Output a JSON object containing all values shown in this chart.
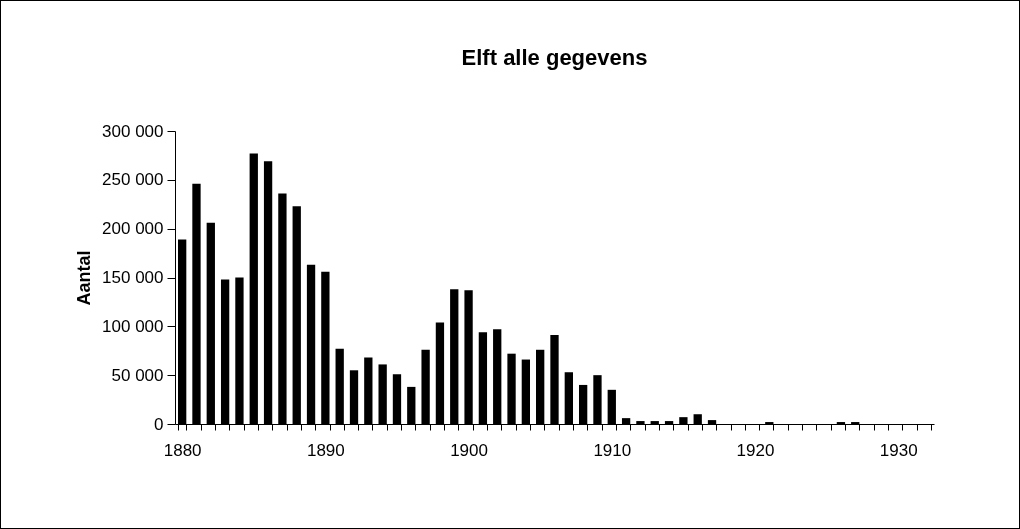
{
  "chart_data": {
    "type": "bar",
    "title": "Elft alle gegevens",
    "ylabel": "Aantal",
    "color": "#000000",
    "categories": [
      "1880",
      null,
      null,
      null,
      null,
      null,
      null,
      null,
      null,
      null,
      "1890",
      null,
      null,
      null,
      null,
      null,
      null,
      null,
      null,
      null,
      "1900",
      null,
      null,
      null,
      null,
      null,
      null,
      null,
      null,
      null,
      "1910",
      null,
      null,
      null,
      null,
      null,
      null,
      null,
      null,
      null,
      "1920",
      null,
      null,
      null,
      null,
      null,
      null,
      null,
      null,
      null,
      "1930",
      null,
      null
    ],
    "values": [
      189000,
      246000,
      206000,
      148000,
      150000,
      277000,
      269000,
      236000,
      223000,
      163000,
      156000,
      77000,
      55000,
      68000,
      61000,
      51000,
      38000,
      76000,
      104000,
      138000,
      137000,
      94000,
      97000,
      72000,
      66000,
      76000,
      91000,
      53000,
      40000,
      50000,
      35000,
      6000,
      3000,
      3000,
      3000,
      7000,
      10000,
      4000,
      0,
      0,
      0,
      2000,
      0,
      0,
      0,
      0,
      2000,
      2000,
      0,
      0,
      0,
      0,
      0
    ],
    "ylim": [
      0,
      300000
    ],
    "yticks": [
      0,
      {
        "value": 50000,
        "label": "50 000"
      },
      {
        "value": 100000,
        "label": "100 000"
      },
      {
        "value": 150000,
        "label": "150 000"
      },
      {
        "value": 200000,
        "label": "200 000"
      },
      {
        "value": 250000,
        "label": "250 000"
      },
      {
        "value": 300000,
        "label": "300 000"
      }
    ],
    "grid": false
  }
}
